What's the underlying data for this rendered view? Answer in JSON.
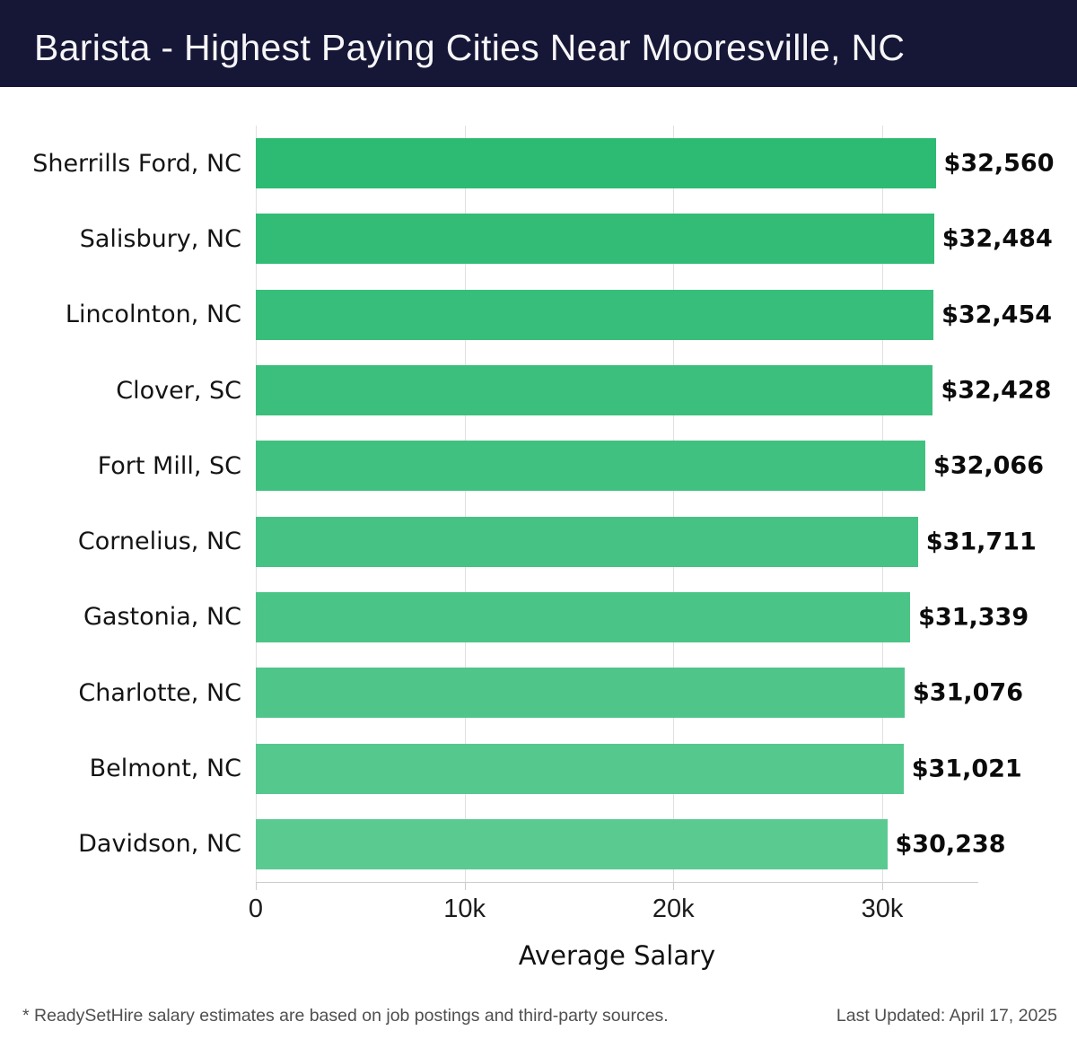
{
  "header": {
    "title": "Barista - Highest Paying Cities Near Mooresville, NC",
    "background_color": "#161636",
    "text_color": "#f6f6f9"
  },
  "chart_data": {
    "type": "bar",
    "orientation": "horizontal",
    "title": "Barista - Highest Paying Cities Near Mooresville, NC",
    "categories": [
      "Sherrills Ford, NC",
      "Salisbury, NC",
      "Lincolnton, NC",
      "Clover, SC",
      "Fort Mill, SC",
      "Cornelius, NC",
      "Gastonia, NC",
      "Charlotte, NC",
      "Belmont, NC",
      "Davidson, NC"
    ],
    "values": [
      32560,
      32484,
      32454,
      32428,
      32066,
      31711,
      31339,
      31076,
      31021,
      30238
    ],
    "value_labels": [
      "$32,560",
      "$32,484",
      "$32,454",
      "$32,428",
      "$32,066",
      "$31,711",
      "$31,339",
      "$31,076",
      "$31,021",
      "$30,238"
    ],
    "bar_colors": [
      "#2dbb73",
      "#32bc76",
      "#37be7a",
      "#3cbf7d",
      "#41c180",
      "#46c284",
      "#4bc487",
      "#50c58a",
      "#55c88e",
      "#5aca91"
    ],
    "xlabel": "Average Salary",
    "ylabel": "",
    "xlim": [
      0,
      34600
    ],
    "xticks": [
      {
        "value": 0,
        "label": "0"
      },
      {
        "value": 10000,
        "label": "10k"
      },
      {
        "value": 20000,
        "label": "20k"
      },
      {
        "value": 30000,
        "label": "30k"
      }
    ],
    "grid": "vertical-only",
    "gridline_color": "#e0e0e0",
    "axis_color": "#cccccc",
    "legend": false
  },
  "footer": {
    "disclaimer": "* ReadySetHire salary estimates are based on job postings and third-party sources.",
    "last_updated": "Last Updated: April 17, 2025"
  }
}
